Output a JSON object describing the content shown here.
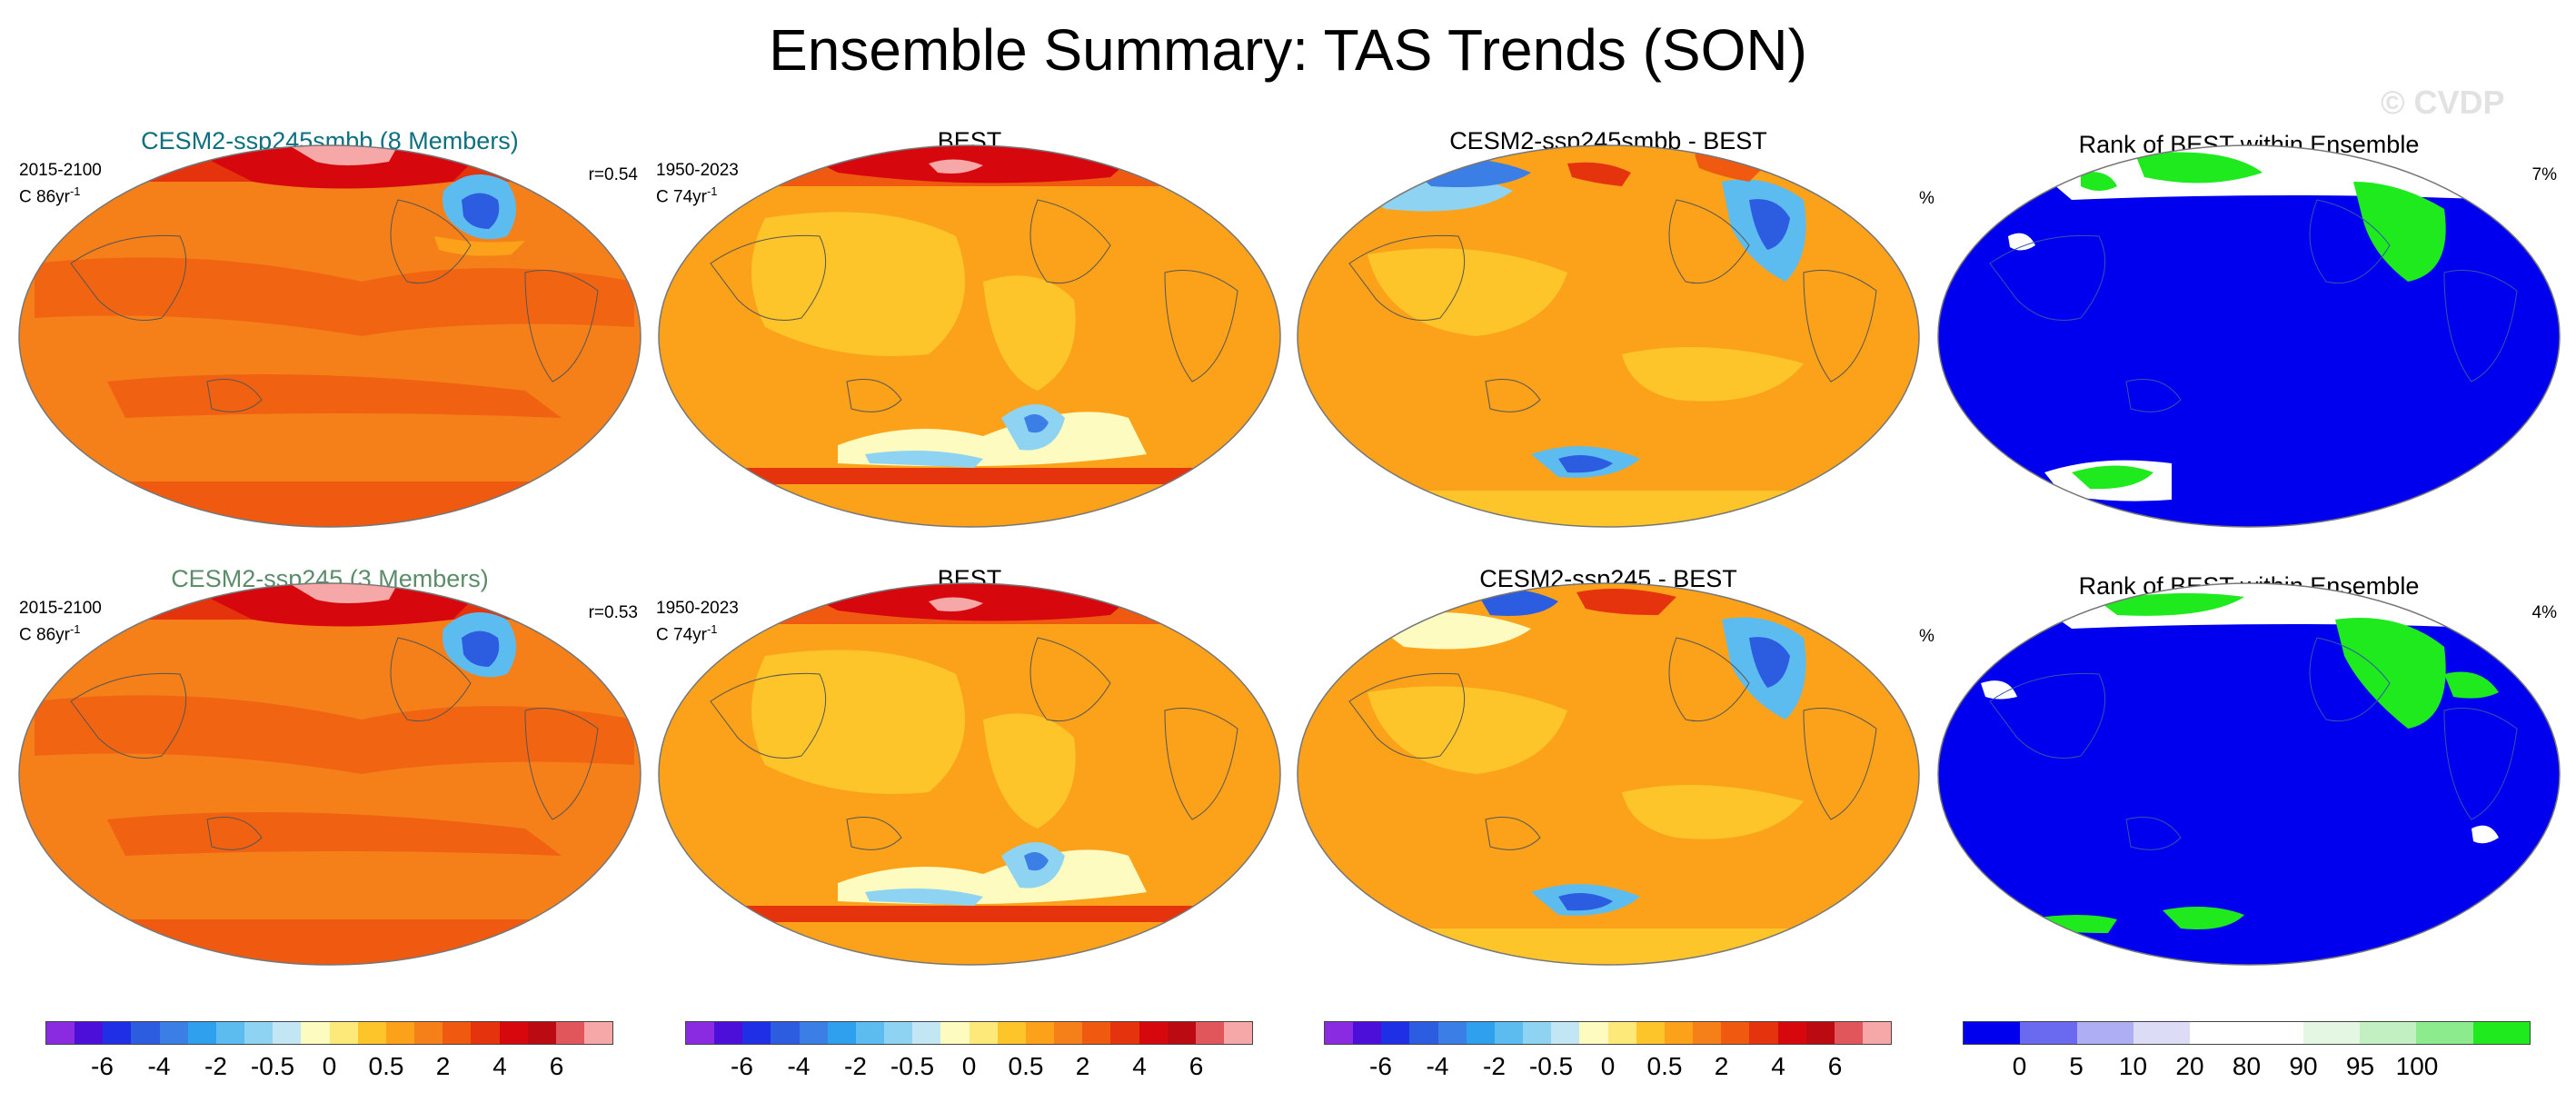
{
  "title": "Ensemble Summary: TAS Trends (SON)",
  "watermark": "© CVDP",
  "rows": [
    {
      "model": {
        "title": "CESM2-ssp245smbb (8 Members)",
        "title_color": "#0d6f80",
        "period": "2015-2100",
        "trend": "C 86yr",
        "trend_exp": "-1",
        "corr": "r=0.54"
      },
      "obs": {
        "title": "BEST",
        "period": "1950-2023",
        "trend": "C 74yr",
        "trend_exp": "-1"
      },
      "diff": {
        "title": "CESM2-ssp245smbb - BEST"
      },
      "rank": {
        "title": "Rank of BEST within Ensemble",
        "unit": "%",
        "pct": "7%"
      }
    },
    {
      "model": {
        "title": "CESM2-ssp245 (3 Members)",
        "title_color": "#5c8c6a",
        "period": "2015-2100",
        "trend": "C 86yr",
        "trend_exp": "-1",
        "corr": "r=0.53"
      },
      "obs": {
        "title": "BEST",
        "period": "1950-2023",
        "trend": "C 74yr",
        "trend_exp": "-1"
      },
      "diff": {
        "title": "CESM2-ssp245 - BEST"
      },
      "rank": {
        "title": "Rank of BEST within Ensemble",
        "unit": "%",
        "pct": "4%"
      }
    }
  ],
  "colorbars": {
    "trend": {
      "colors": [
        "#8a2be2",
        "#4b0fd9",
        "#1f2fe6",
        "#2c5de0",
        "#3a7ee6",
        "#2fa0ee",
        "#5cbcf0",
        "#8fd3f3",
        "#c3e6f5",
        "#fdfbc0",
        "#fde87a",
        "#fdc52a",
        "#fba21a",
        "#f5801a",
        "#ef5a10",
        "#e5330d",
        "#d6080d",
        "#bb0a12",
        "#e0565a",
        "#f6a8a8"
      ],
      "labels": [
        "-6",
        "-4",
        "-2",
        "-0.5",
        "0",
        "0.5",
        "2",
        "4",
        "6"
      ]
    },
    "rank": {
      "colors": [
        "#0000ee",
        "#6a6af0",
        "#aeaef5",
        "#dcdcf7",
        "#ffffff",
        "#ffffff",
        "#e3f7e3",
        "#c3f0c3",
        "#8ceb8c",
        "#1eea1e"
      ],
      "labels": [
        "0",
        "5",
        "10",
        "20",
        "80",
        "90",
        "95",
        "100"
      ]
    }
  }
}
